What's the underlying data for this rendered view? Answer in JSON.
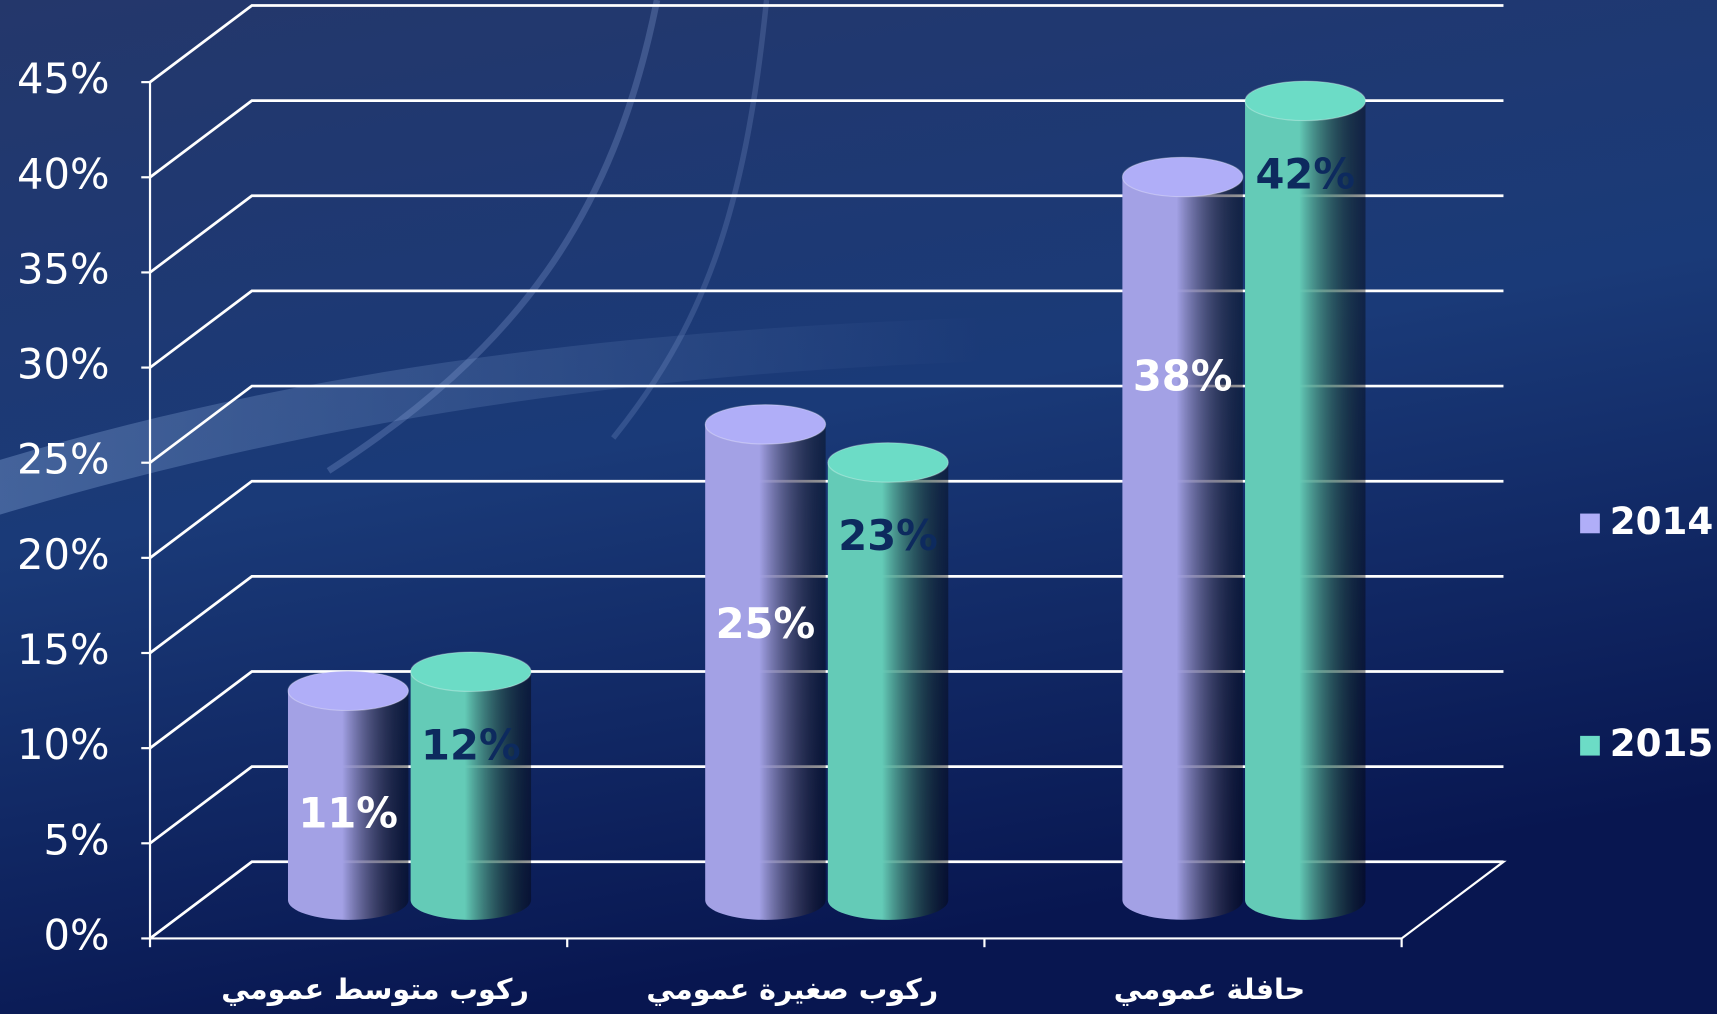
{
  "chart_data": {
    "type": "bar",
    "categories": [
      "ركوب متوسط عمومي",
      "ركوب صغيرة عمومي",
      "حافلة عمومي"
    ],
    "series": [
      {
        "name": "2014",
        "color": "#b0aef8",
        "values": [
          11,
          25,
          38
        ],
        "value_labels": [
          "11%",
          "25%",
          "38%"
        ]
      },
      {
        "name": "2015",
        "color": "#6cdcc6",
        "values": [
          12,
          23,
          42
        ],
        "value_labels": [
          "12%",
          "23%",
          "42%"
        ]
      }
    ],
    "ylim": [
      0,
      45
    ],
    "yticks": [
      {
        "value": 0,
        "label": "0%"
      },
      {
        "value": 5,
        "label": "5%"
      },
      {
        "value": 10,
        "label": "10%"
      },
      {
        "value": 15,
        "label": "15%"
      },
      {
        "value": 20,
        "label": "20%"
      },
      {
        "value": 25,
        "label": "25%"
      },
      {
        "value": 30,
        "label": "30%"
      },
      {
        "value": 35,
        "label": "35%"
      },
      {
        "value": 40,
        "label": "40%"
      },
      {
        "value": 45,
        "label": "45%"
      }
    ],
    "grid": true,
    "legend": "right"
  }
}
